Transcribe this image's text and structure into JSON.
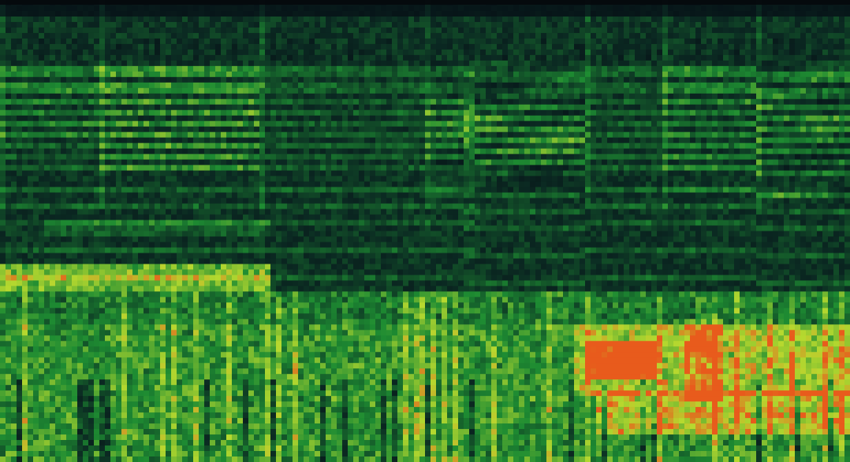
{
  "image": {
    "kind": "spectrogram",
    "palette": {
      "background": "#061016",
      "low": "#0b2a22",
      "mid": "#1e8c32",
      "high": "#b7d92f",
      "peak": "#e85b1c"
    },
    "visible_text": []
  }
}
